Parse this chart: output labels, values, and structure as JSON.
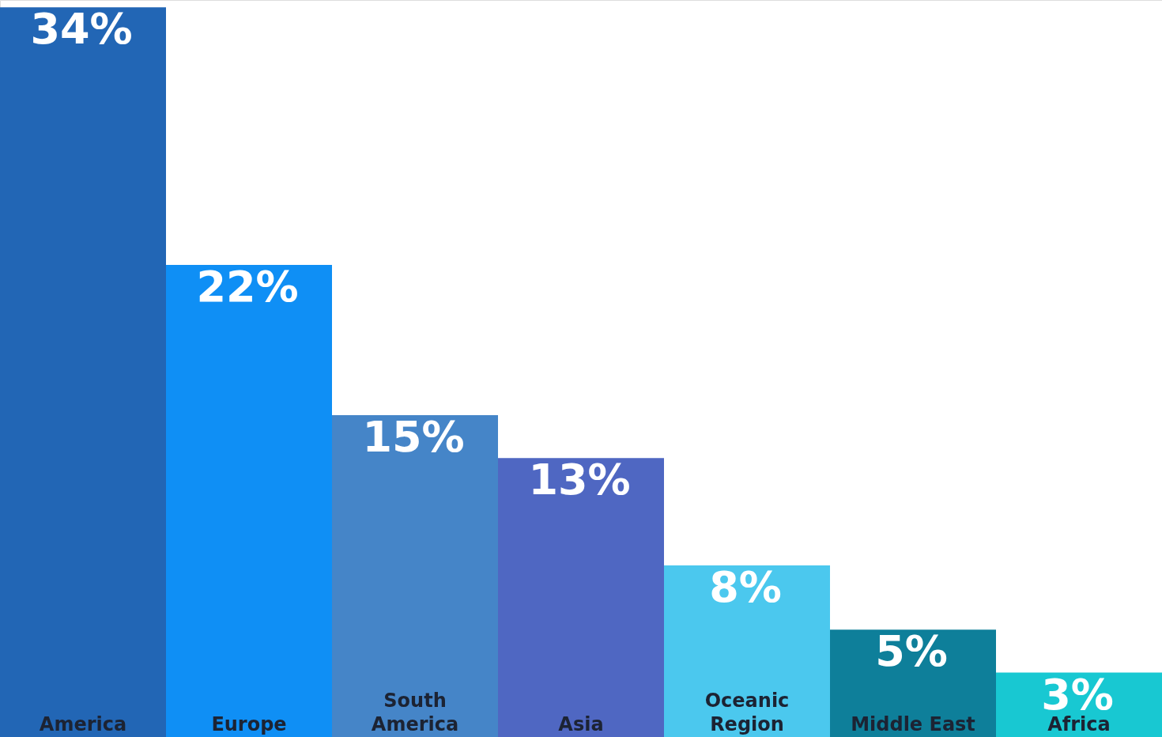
{
  "chart_data": {
    "type": "bar",
    "categories": [
      "America",
      "Europe",
      "South\nAmerica",
      "Asia",
      "Oceanic\nRegion",
      "Middle East",
      "Africa"
    ],
    "values": [
      34,
      22,
      15,
      13,
      8,
      5,
      3
    ],
    "colors": [
      "#2266b5",
      "#0f8ff5",
      "#4585c8",
      "#4f67c2",
      "#4bc8ee",
      "#0e7f9a",
      "#18c8d2"
    ],
    "data_labels": true,
    "value_labels": [
      "34%",
      "22%",
      "15%",
      "13%",
      "8%",
      "5%",
      "3%"
    ],
    "grid": false,
    "legend": false
  }
}
